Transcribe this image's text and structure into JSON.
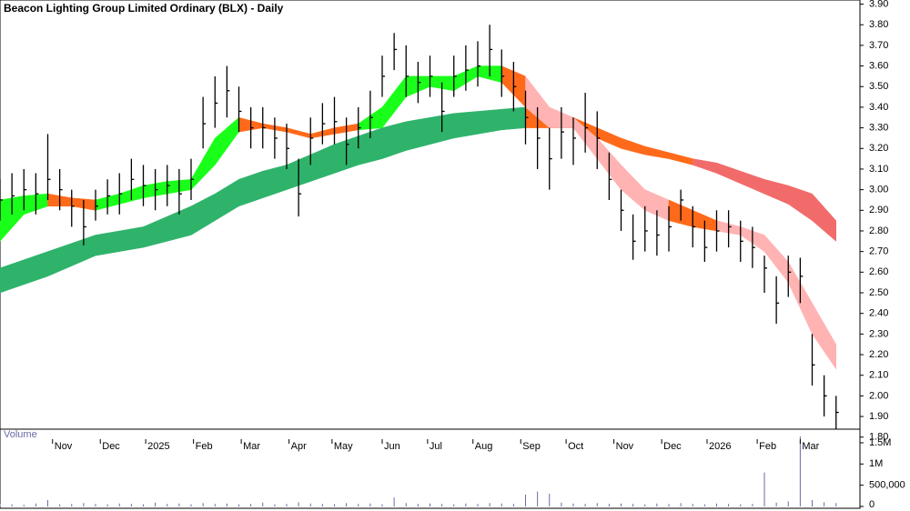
{
  "chart_data": {
    "type": "ohlc",
    "title": "Beacon Lighting Group Limited Ordinary (BLX) - Daily",
    "x": [
      0,
      5,
      10,
      15,
      20,
      25,
      30,
      35,
      40,
      45,
      50,
      55,
      60,
      65,
      70,
      75,
      80,
      85,
      90,
      95,
      100,
      105,
      110,
      115,
      120,
      125,
      130,
      135,
      140,
      145,
      150,
      155,
      160,
      165,
      170,
      175,
      180,
      185,
      190,
      195,
      200,
      205,
      210,
      215,
      220,
      225,
      230,
      235,
      240,
      245,
      250,
      255,
      260,
      265,
      270,
      275,
      280,
      285,
      290,
      295,
      300,
      305,
      310,
      315,
      320,
      325,
      330,
      335,
      340,
      345,
      350
    ],
    "high": [
      3.05,
      3.08,
      3.1,
      3.08,
      3.27,
      3.1,
      3.0,
      2.95,
      3.0,
      3.05,
      3.08,
      3.15,
      3.12,
      3.1,
      3.12,
      3.1,
      3.15,
      3.45,
      3.55,
      3.6,
      3.5,
      3.4,
      3.4,
      3.35,
      3.32,
      3.15,
      3.35,
      3.42,
      3.45,
      3.35,
      3.4,
      3.48,
      3.65,
      3.76,
      3.7,
      3.62,
      3.65,
      3.52,
      3.65,
      3.7,
      3.72,
      3.8,
      3.68,
      3.62,
      3.48,
      3.4,
      3.3,
      3.4,
      3.35,
      3.47,
      3.38,
      3.18,
      3.0,
      2.88,
      2.92,
      2.9,
      2.92,
      3.0,
      2.92,
      2.85,
      2.9,
      2.9,
      2.85,
      2.82,
      2.68,
      2.58,
      2.68,
      2.67,
      2.3,
      2.1,
      2.0
    ],
    "low": [
      2.85,
      2.88,
      2.9,
      2.88,
      2.95,
      2.9,
      2.82,
      2.73,
      2.85,
      2.88,
      2.88,
      2.95,
      2.92,
      2.9,
      2.92,
      2.88,
      2.95,
      3.2,
      3.3,
      3.35,
      3.28,
      3.2,
      3.2,
      3.15,
      3.1,
      2.87,
      3.12,
      3.22,
      3.22,
      3.12,
      3.2,
      3.25,
      3.45,
      3.58,
      3.45,
      3.42,
      3.45,
      3.28,
      3.45,
      3.48,
      3.5,
      3.55,
      3.45,
      3.38,
      3.22,
      3.1,
      3.0,
      3.15,
      3.12,
      3.18,
      3.1,
      2.95,
      2.8,
      2.66,
      2.7,
      2.68,
      2.7,
      2.85,
      2.72,
      2.65,
      2.7,
      2.72,
      2.65,
      2.62,
      2.5,
      2.35,
      2.48,
      2.45,
      2.05,
      1.9,
      1.84
    ],
    "close": [
      2.95,
      2.97,
      3.0,
      2.98,
      3.05,
      3.0,
      2.92,
      2.82,
      2.92,
      2.97,
      2.98,
      3.05,
      3.02,
      3.0,
      3.02,
      2.98,
      3.05,
      3.32,
      3.42,
      3.48,
      3.38,
      3.3,
      3.3,
      3.25,
      3.2,
      2.98,
      3.25,
      3.32,
      3.33,
      3.22,
      3.3,
      3.35,
      3.55,
      3.68,
      3.55,
      3.52,
      3.55,
      3.38,
      3.55,
      3.58,
      3.6,
      3.68,
      3.55,
      3.5,
      3.35,
      3.25,
      3.15,
      3.28,
      3.25,
      3.3,
      3.25,
      3.05,
      2.9,
      2.75,
      2.8,
      2.78,
      2.82,
      2.95,
      2.82,
      2.72,
      2.8,
      2.82,
      2.75,
      2.72,
      2.62,
      2.45,
      2.6,
      2.58,
      2.15,
      2.0,
      1.92
    ],
    "bar_color": "#000000",
    "ribbons": [
      {
        "x": [
          0,
          10,
          20,
          30,
          40,
          50,
          60,
          70,
          80,
          90,
          100,
          110,
          120,
          130,
          140,
          150,
          160,
          170,
          180,
          190,
          200,
          210,
          220,
          230,
          240,
          250,
          260,
          270,
          280,
          290,
          300,
          310,
          320,
          330,
          340,
          350
        ],
        "upper": [
          2.62,
          2.66,
          2.7,
          2.74,
          2.78,
          2.8,
          2.82,
          2.87,
          2.92,
          2.98,
          3.05,
          3.09,
          3.12,
          3.17,
          3.22,
          3.26,
          3.3,
          3.33,
          3.35,
          3.37,
          3.38,
          3.39,
          3.4,
          3.38,
          3.35,
          3.3,
          3.25,
          3.21,
          3.18,
          3.15,
          3.13,
          3.09,
          3.05,
          3.02,
          2.98,
          2.85
        ],
        "lower": [
          2.5,
          2.54,
          2.58,
          2.63,
          2.68,
          2.7,
          2.72,
          2.75,
          2.78,
          2.85,
          2.92,
          2.96,
          3.0,
          3.04,
          3.08,
          3.12,
          3.15,
          3.19,
          3.22,
          3.25,
          3.27,
          3.29,
          3.3,
          3.3,
          3.3,
          3.25,
          3.2,
          3.17,
          3.15,
          3.12,
          3.08,
          3.03,
          2.98,
          2.93,
          2.85,
          2.75
        ],
        "colors": [
          "#2fb36b",
          "#2fb36b",
          "#2fb36b",
          "#2fb36b",
          "#2fb36b",
          "#2fb36b",
          "#2fb36b",
          "#2fb36b",
          "#2fb36b",
          "#2fb36b",
          "#2fb36b",
          "#2fb36b",
          "#2fb36b",
          "#2fb36b",
          "#2fb36b",
          "#2fb36b",
          "#2fb36b",
          "#2fb36b",
          "#2fb36b",
          "#2fb36b",
          "#2fb36b",
          "#2fb36b",
          "#ff6a1a",
          "#ff6a1a",
          "#ff6a1a",
          "#ff6a1a",
          "#ff6a1a",
          "#ff6a1a",
          "#ff6a1a",
          "#f26b6b",
          "#f26b6b",
          "#f26b6b",
          "#f26b6b",
          "#f26b6b",
          "#f26b6b"
        ]
      },
      {
        "x": [
          0,
          10,
          20,
          30,
          40,
          50,
          60,
          70,
          80,
          90,
          100,
          110,
          120,
          130,
          140,
          150,
          160,
          170,
          180,
          190,
          200,
          210,
          220,
          230,
          240,
          250,
          260,
          270,
          280,
          290,
          300,
          310,
          320,
          330,
          340,
          350
        ],
        "upper": [
          2.95,
          2.97,
          2.98,
          2.96,
          2.95,
          2.98,
          3.02,
          3.04,
          3.05,
          3.25,
          3.35,
          3.32,
          3.3,
          3.27,
          3.3,
          3.32,
          3.4,
          3.55,
          3.55,
          3.55,
          3.6,
          3.6,
          3.55,
          3.4,
          3.35,
          3.25,
          3.12,
          3.0,
          2.95,
          2.9,
          2.85,
          2.82,
          2.78,
          2.65,
          2.45,
          2.25
        ],
        "lower": [
          2.75,
          2.88,
          2.92,
          2.92,
          2.9,
          2.93,
          2.96,
          2.98,
          3.0,
          3.12,
          3.28,
          3.3,
          3.28,
          3.25,
          3.27,
          3.29,
          3.3,
          3.45,
          3.5,
          3.48,
          3.55,
          3.52,
          3.4,
          3.3,
          3.3,
          3.15,
          3.0,
          2.9,
          2.85,
          2.82,
          2.8,
          2.78,
          2.7,
          2.55,
          2.3,
          2.13
        ],
        "colors": [
          "#19ff19",
          "#19ff19",
          "#ff6a1a",
          "#ff6a1a",
          "#19ff19",
          "#19ff19",
          "#19ff19",
          "#19ff19",
          "#19ff19",
          "#19ff19",
          "#ff6a1a",
          "#ff6a1a",
          "#ff6a1a",
          "#ff6a1a",
          "#ff6a1a",
          "#19ff19",
          "#19ff19",
          "#19ff19",
          "#19ff19",
          "#19ff19",
          "#19ff19",
          "#ff6a1a",
          "#ffb3b3",
          "#ffb3b3",
          "#ffb3b3",
          "#ffb3b3",
          "#ffb3b3",
          "#ffb3b3",
          "#ff6a1a",
          "#ff6a1a",
          "#ffb3b3",
          "#ffb3b3",
          "#ffb3b3",
          "#ffb3b3",
          "#ffb3b3"
        ]
      }
    ],
    "xlim": [
      0,
      360
    ],
    "xticks": [
      {
        "value": 22,
        "label": "Nov"
      },
      {
        "value": 42,
        "label": "Dec"
      },
      {
        "value": 61,
        "label": "2025"
      },
      {
        "value": 81,
        "label": "Feb"
      },
      {
        "value": 101,
        "label": "Mar"
      },
      {
        "value": 121,
        "label": "Apr"
      },
      {
        "value": 139,
        "label": "May"
      },
      {
        "value": 160,
        "label": "Jun"
      },
      {
        "value": 179,
        "label": "Jul"
      },
      {
        "value": 198,
        "label": "Aug"
      },
      {
        "value": 218,
        "label": "Sep"
      },
      {
        "value": 237,
        "label": "Oct"
      },
      {
        "value": 257,
        "label": "Nov"
      },
      {
        "value": 277,
        "label": "Dec"
      },
      {
        "value": 296,
        "label": "2026"
      },
      {
        "value": 317,
        "label": "Feb"
      },
      {
        "value": 335,
        "label": "Mar"
      }
    ],
    "ylim": [
      1.79,
      3.92
    ],
    "yticks": [
      {
        "value": 1.8,
        "label": "1.80"
      },
      {
        "value": 1.9,
        "label": "1.90"
      },
      {
        "value": 2,
        "label": "2.00"
      },
      {
        "value": 2.1,
        "label": "2.10"
      },
      {
        "value": 2.2,
        "label": "2.20"
      },
      {
        "value": 2.3,
        "label": "2.30"
      },
      {
        "value": 2.4,
        "label": "2.40"
      },
      {
        "value": 2.5,
        "label": "2.50"
      },
      {
        "value": 2.6,
        "label": "2.60"
      },
      {
        "value": 2.7,
        "label": "2.70"
      },
      {
        "value": 2.8,
        "label": "2.80"
      },
      {
        "value": 2.9,
        "label": "2.90"
      },
      {
        "value": 3,
        "label": "3.00"
      },
      {
        "value": 3.1,
        "label": "3.10"
      },
      {
        "value": 3.2,
        "label": "3.20"
      },
      {
        "value": 3.3,
        "label": "3.30"
      },
      {
        "value": 3.4,
        "label": "3.40"
      },
      {
        "value": 3.5,
        "label": "3.50"
      },
      {
        "value": 3.6,
        "label": "3.60"
      },
      {
        "value": 3.7,
        "label": "3.70"
      },
      {
        "value": 3.8,
        "label": "3.80"
      },
      {
        "value": 3.9,
        "label": "3.90"
      }
    ],
    "volume": {
      "label": "Volume",
      "color": "#6a6aa8",
      "values": [
        60000,
        50000,
        40000,
        70000,
        150000,
        50000,
        60000,
        80000,
        60000,
        50000,
        70000,
        60000,
        50000,
        90000,
        60000,
        70000,
        50000,
        80000,
        60000,
        70000,
        50000,
        60000,
        90000,
        50000,
        60000,
        100000,
        70000,
        60000,
        50000,
        80000,
        60000,
        70000,
        50000,
        210000,
        80000,
        60000,
        70000,
        60000,
        50000,
        70000,
        60000,
        80000,
        70000,
        60000,
        280000,
        350000,
        300000,
        90000,
        70000,
        60000,
        80000,
        60000,
        70000,
        60000,
        50000,
        70000,
        60000,
        80000,
        60000,
        50000,
        70000,
        60000,
        50000,
        60000,
        800000,
        90000,
        120000,
        1650000,
        150000,
        100000,
        80000
      ],
      "ylim": [
        0,
        1820000
      ],
      "yticks": [
        0,
        {
          "value": 500000,
          "label": "500,000"
        },
        {
          "value": 1000000,
          "label": "1M"
        },
        {
          "value": 1500000,
          "label": "1.5M"
        }
      ]
    }
  }
}
